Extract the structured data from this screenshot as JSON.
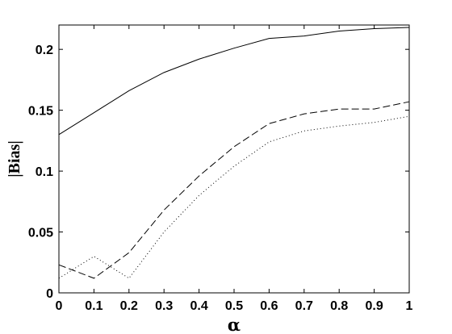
{
  "chart_data": {
    "type": "line",
    "title": "",
    "xlabel": "α",
    "ylabel": "|Bias|",
    "xlim": [
      0,
      1
    ],
    "ylim": [
      0,
      0.22
    ],
    "x_ticks": [
      0,
      0.1,
      0.2,
      0.3,
      0.4,
      0.5,
      0.6,
      0.7,
      0.8,
      0.9,
      1
    ],
    "x_tick_labels": [
      "0",
      "0.1",
      "0.2",
      "0.3",
      "0.4",
      "0.5",
      "0.6",
      "0.7",
      "0.8",
      "0.9",
      "1"
    ],
    "y_ticks": [
      0,
      0.05,
      0.1,
      0.15,
      0.2
    ],
    "y_tick_labels": [
      "0",
      "0.05",
      "0.1",
      "0.15",
      "0.2"
    ],
    "grid": false,
    "legend": "none",
    "x": [
      0,
      0.1,
      0.2,
      0.3,
      0.4,
      0.5,
      0.6,
      0.7,
      0.8,
      0.9,
      1
    ],
    "series": [
      {
        "style": "solid",
        "color": "#000000",
        "values": [
          0.13,
          0.148,
          0.166,
          0.181,
          0.192,
          0.201,
          0.209,
          0.211,
          0.215,
          0.217,
          0.218
        ]
      },
      {
        "style": "dashed",
        "color": "#000000",
        "values": [
          0.023,
          0.012,
          0.033,
          0.068,
          0.096,
          0.12,
          0.139,
          0.147,
          0.151,
          0.151,
          0.157
        ]
      },
      {
        "style": "dotted",
        "color": "#000000",
        "values": [
          0.012,
          0.03,
          0.012,
          0.05,
          0.08,
          0.104,
          0.124,
          0.133,
          0.137,
          0.14,
          0.145
        ]
      }
    ]
  }
}
